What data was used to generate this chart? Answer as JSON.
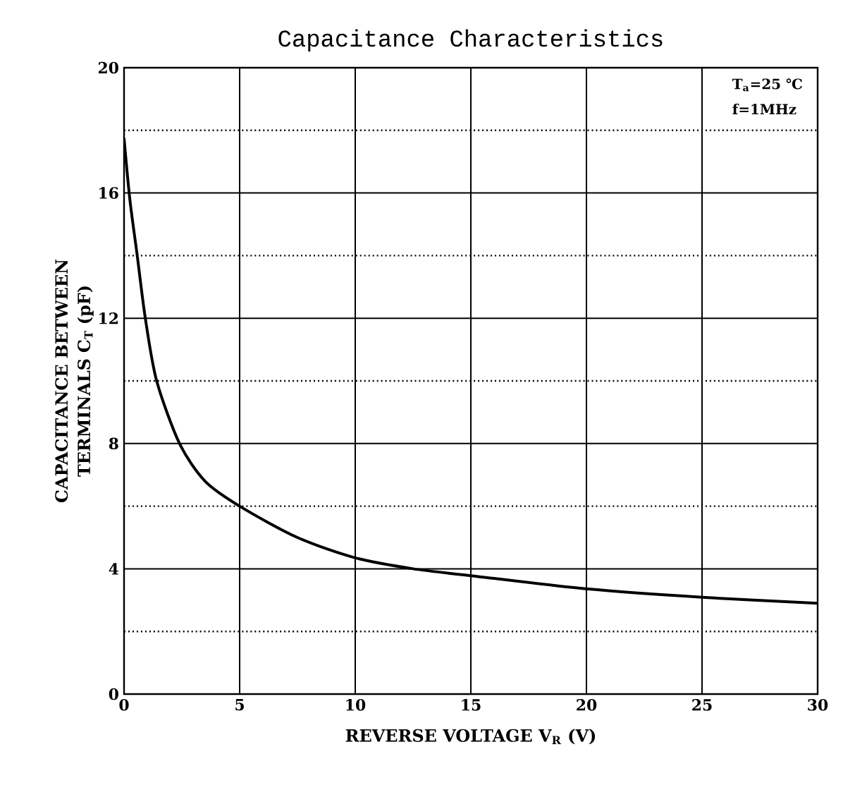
{
  "chart_data": {
    "type": "line",
    "title": "Capacitance Characteristics",
    "xlabel": "REVERSE VOLTAGE    V$_{R}$    (V)",
    "ylabel": "CAPACITANCE BETWEEN TERMINALS C$_{T}$ (pF)",
    "annotations": [
      "T$_{a}$=25 ℃",
      "f=1MHz"
    ],
    "x": [
      0,
      0.25,
      0.57,
      0.92,
      1.41,
      2.4,
      3.5,
      5,
      7.5,
      10,
      12.5,
      15,
      20,
      25,
      30
    ],
    "series": [
      {
        "color": "#000000",
        "values": [
          17.75,
          15.8,
          14,
          12,
          10,
          8,
          6.8,
          6,
          5,
          4.35,
          4,
          3.78,
          3.36,
          3.09,
          2.9
        ]
      }
    ],
    "xlim": [
      0,
      30
    ],
    "ylim": [
      0,
      20
    ],
    "xticks": [
      0,
      5,
      10,
      15,
      20,
      25,
      30
    ],
    "yticks": [
      0,
      {
        "value": 2,
        "label": null
      },
      4,
      {
        "value": 6,
        "label": null
      },
      8,
      {
        "value": 10,
        "label": null
      },
      12,
      {
        "value": 14,
        "label": null
      },
      16,
      {
        "value": 18,
        "label": null
      },
      20
    ],
    "grid": true
  }
}
